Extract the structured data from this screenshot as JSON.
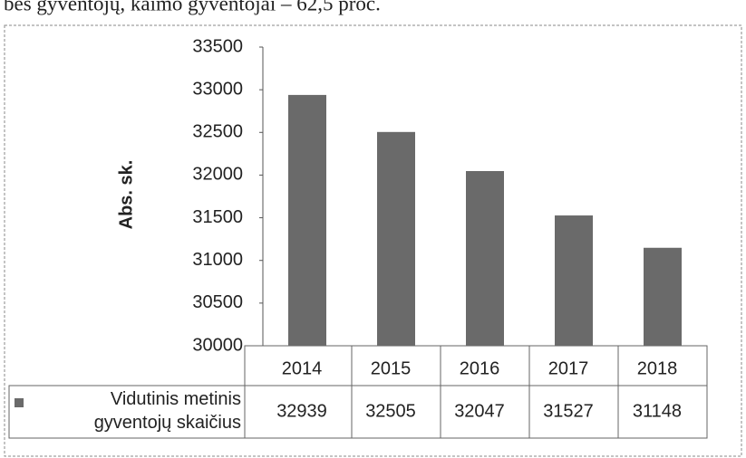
{
  "page_text": "bės gyventojų, kaimo gyventojai – 62,5 proc.",
  "chart_data": {
    "type": "bar",
    "y_label": "Abs. sk.",
    "categories": [
      "2014",
      "2015",
      "2016",
      "2017",
      "2018"
    ],
    "series": [
      {
        "name": "Vidutinis metinis gyventojų skaičius",
        "color": "#6a6a6a",
        "values": [
          32939,
          32505,
          32047,
          31527,
          31148
        ]
      }
    ],
    "ylim": [
      30000,
      33500
    ],
    "yticks": [
      30000,
      30500,
      31000,
      31500,
      32000,
      32500,
      33000,
      33500
    ],
    "grid": false,
    "data_table": true
  }
}
